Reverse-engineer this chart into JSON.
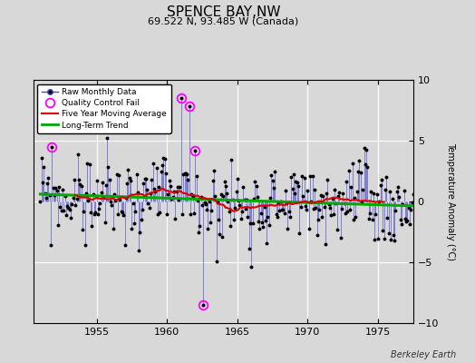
{
  "title": "SPENCE BAY,NW",
  "subtitle": "69.522 N, 93.485 W (Canada)",
  "ylabel": "Temperature Anomaly (°C)",
  "watermark": "Berkeley Earth",
  "xlim": [
    1950.5,
    1977.5
  ],
  "ylim": [
    -10,
    10
  ],
  "yticks": [
    -10,
    -5,
    0,
    5,
    10
  ],
  "xticks": [
    1955,
    1960,
    1965,
    1970,
    1975
  ],
  "bg_color": "#d8d8d8",
  "plot_bg_color": "#d8d8d8",
  "raw_line_color": "#4444cc",
  "raw_dot_color": "#000000",
  "ma_color": "#dd0000",
  "trend_color": "#00aa00",
  "qc_color": "#ff00ff",
  "seed": 99,
  "n_months": 324,
  "start_year": 1951.0,
  "end_year": 1978.0,
  "qc_indices": [
    10,
    120,
    127,
    132,
    139
  ],
  "qc_values": [
    4.5,
    8.5,
    7.8,
    4.2,
    -8.5
  ]
}
